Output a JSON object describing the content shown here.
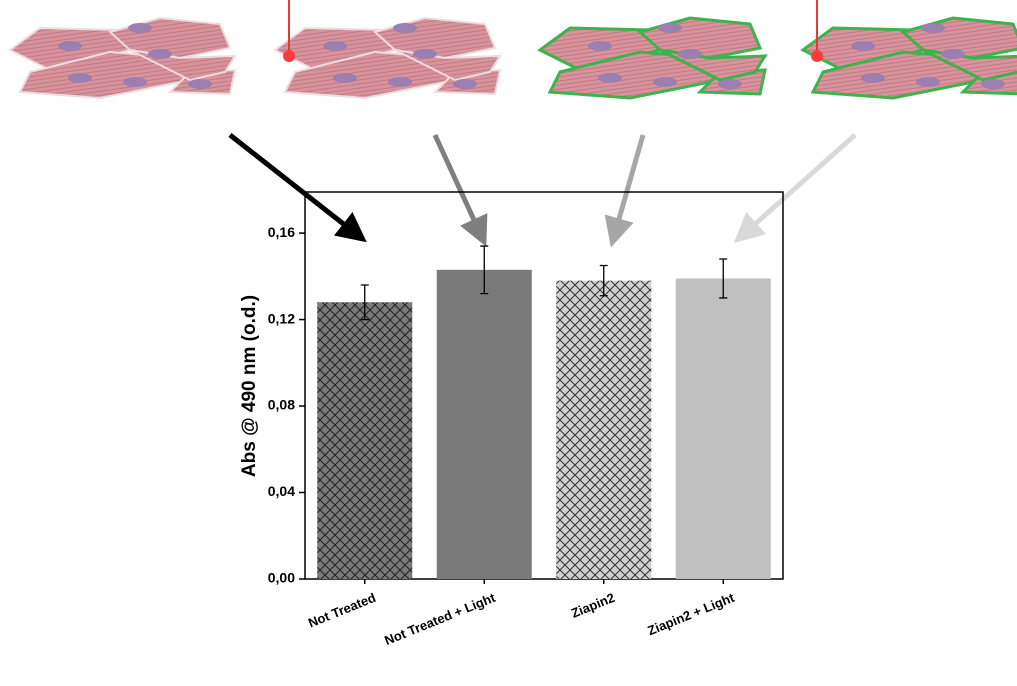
{
  "chart_data": {
    "type": "bar",
    "categories": [
      "Not Treated",
      "Not Treated + Light",
      "Ziapin2",
      "Ziapin2 + Light"
    ],
    "values": [
      0.128,
      0.143,
      0.138,
      0.139
    ],
    "errors": [
      0.008,
      0.011,
      0.007,
      0.009
    ],
    "colors": [
      "#7a7a7a",
      "#7a7a7a",
      "#d0d0d0",
      "#c0c0c0"
    ],
    "hatch": [
      true,
      false,
      true,
      false
    ],
    "y_label": "Abs @ 490 nm (o.d.)",
    "ylim": [
      0,
      0.179
    ],
    "yticks": [
      {
        "value": 0,
        "label": "0,00"
      },
      {
        "value": 0.04,
        "label": "0,04"
      },
      {
        "value": 0.08,
        "label": "0,08"
      },
      {
        "value": 0.12,
        "label": "0,12"
      },
      {
        "value": 0.16,
        "label": "0,16"
      }
    ]
  }
}
